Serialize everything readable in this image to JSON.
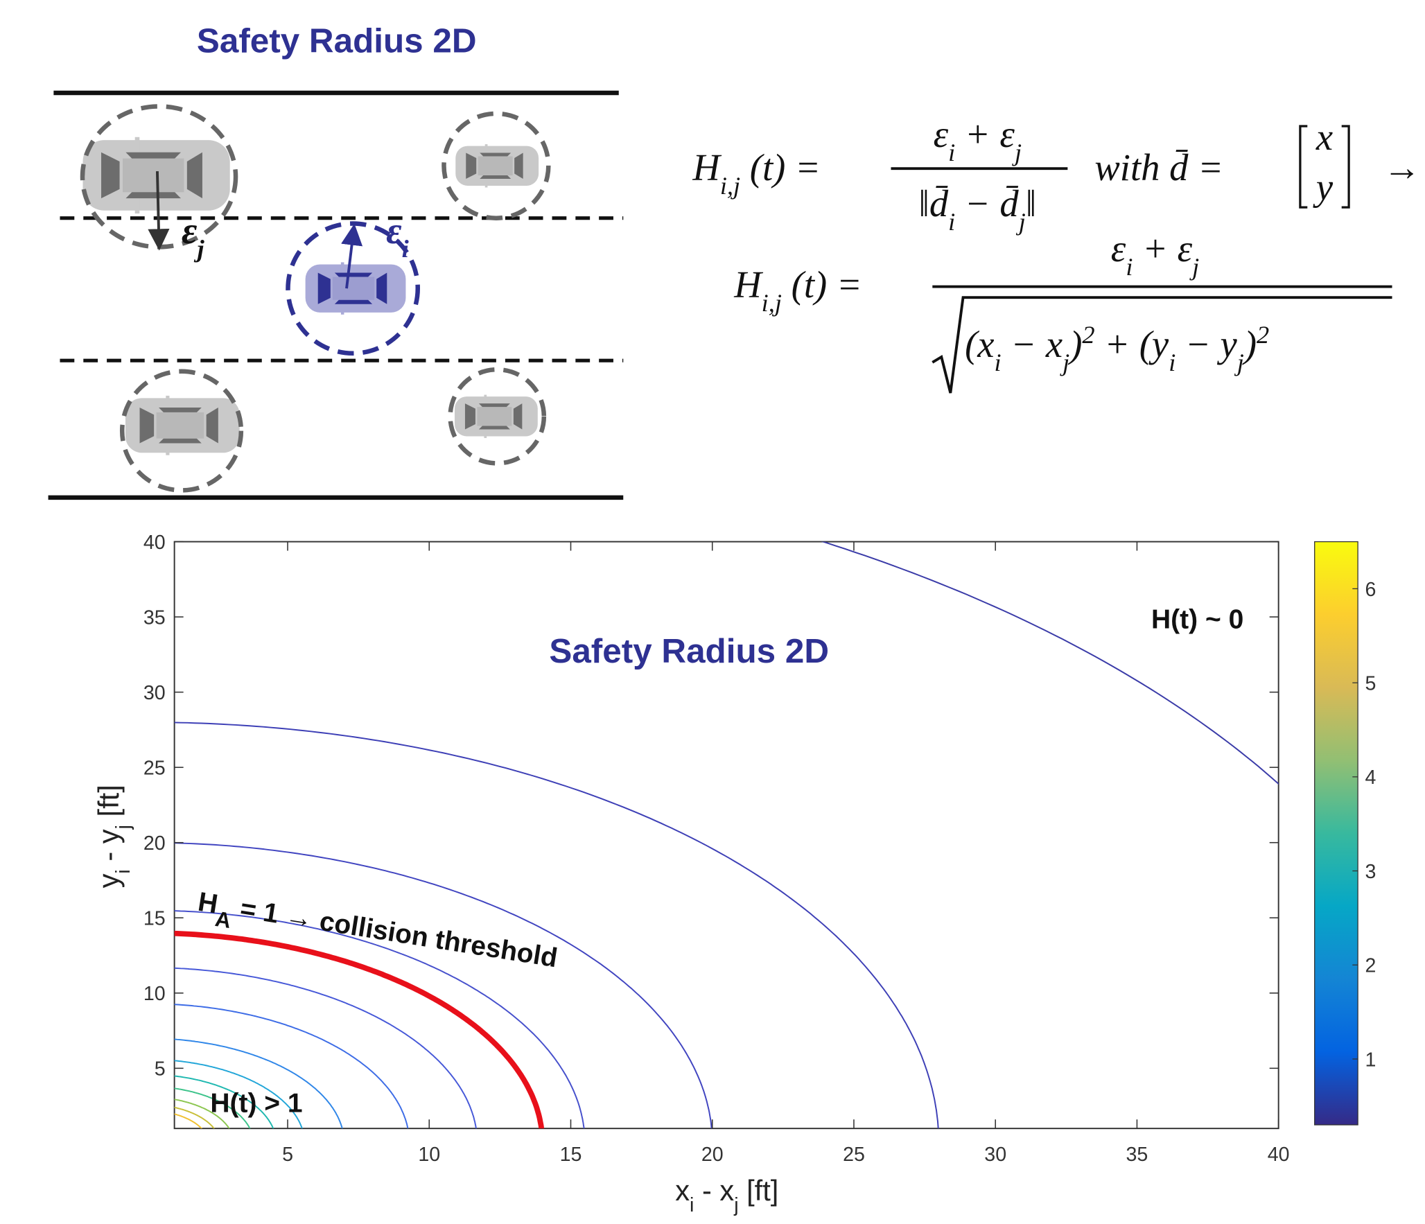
{
  "diagram": {
    "title": "Safety Radius 2D",
    "labels": {
      "epsilon_j": [
        "ε",
        "j"
      ],
      "epsilon_i": [
        "ε",
        "i"
      ]
    }
  },
  "equations": [
    {
      "lhs": [
        "H",
        "i,j",
        " (t) ="
      ],
      "numerator": [
        "ε",
        "i",
        " + ε",
        "j"
      ],
      "denominator": [
        "‖",
        "d̄",
        "i",
        " − ",
        "d̄",
        "j",
        "‖"
      ],
      "rest": [
        "with  ",
        "d̄",
        " ="
      ],
      "matrix": [
        "x",
        "y"
      ],
      "arrow": "→"
    },
    {
      "lhs": [
        "H",
        "i,j",
        " (t) ="
      ],
      "numerator": [
        "ε",
        "i",
        " + ε",
        "j"
      ],
      "denominator": [
        "(x",
        "i",
        " − x",
        "j",
        ")",
        "2",
        " + (y",
        "i",
        " − y",
        "j",
        ")",
        "2"
      ]
    }
  ],
  "chart_data": {
    "type": "contour",
    "title": "Safety Radius 2D",
    "x_label": [
      "x",
      "i",
      " - x",
      "j",
      " [ft]"
    ],
    "y_label": [
      "y",
      "i",
      " - y",
      "j",
      " [ft]"
    ],
    "xlim": [
      1,
      40
    ],
    "ylim": [
      1,
      40
    ],
    "xticks": [
      5,
      10,
      15,
      20,
      25,
      30,
      35,
      40
    ],
    "yticks": [
      5,
      10,
      15,
      20,
      25,
      30,
      35,
      40
    ],
    "contours": [
      {
        "radius": 46.6,
        "color": "#3a3ba8",
        "width": 1.5
      },
      {
        "radius": 28,
        "color": "#3d3fb6",
        "width": 1.5
      },
      {
        "radius": 20,
        "color": "#4044c0",
        "width": 1.5
      },
      {
        "radius": 15.5,
        "color": "#4650cc",
        "width": 1.5
      },
      {
        "radius": 14,
        "color": "#e8101a",
        "width": 6
      },
      {
        "radius": 11.7,
        "color": "#4658d8",
        "width": 1.5
      },
      {
        "radius": 9.3,
        "color": "#3d6ce6",
        "width": 1.5
      },
      {
        "radius": 7,
        "color": "#2f86e8",
        "width": 1.5
      },
      {
        "radius": 5.6,
        "color": "#22a6d8",
        "width": 1.5
      },
      {
        "radius": 4.6,
        "color": "#1fb8b0",
        "width": 1.5
      },
      {
        "radius": 3.8,
        "color": "#3cc38a",
        "width": 1.5
      },
      {
        "radius": 3.1,
        "color": "#8cc650",
        "width": 1.5
      },
      {
        "radius": 2.6,
        "color": "#c8bf38",
        "width": 1.5
      },
      {
        "radius": 2.2,
        "color": "#f0c030",
        "width": 1.5
      }
    ],
    "annotations": [
      "H(t) ~ 0",
      "H(t) > 1"
    ],
    "threshold_label": [
      "H",
      "A",
      " = 1 → collision threshold"
    ],
    "colorbar": {
      "lim": [
        0.3,
        6.5
      ],
      "ticks": [
        1,
        2,
        3,
        4,
        5,
        6
      ],
      "colors": [
        "#352a87",
        "#0363e1",
        "#1485d4",
        "#06a7c6",
        "#38b99e",
        "#92bf73",
        "#d9ba56",
        "#fcce2e",
        "#f9fb0e"
      ]
    }
  }
}
